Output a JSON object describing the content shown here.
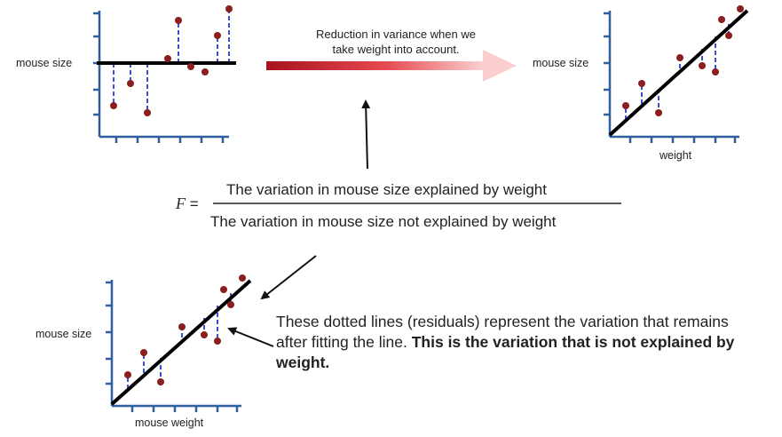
{
  "top_left_panel": {
    "ylabel": "mouse size"
  },
  "top_right_panel": {
    "ylabel": "mouse size",
    "xlabel": "weight"
  },
  "bottom_panel": {
    "ylabel": "mouse size",
    "xlabel": "mouse weight"
  },
  "arrow_caption_line1": "Reduction in variance when we",
  "arrow_caption_line2": "take weight into account.",
  "formula": {
    "lhs": "F",
    "equals": "=",
    "numerator": "The variation in mouse size explained by weight",
    "denominator": "The variation in mouse size not explained by weight"
  },
  "note": {
    "part1": "These dotted lines (residuals) represent the variation that remains after fitting the line. ",
    "part2_bold": "This is the variation that is not explained by weight."
  },
  "colors": {
    "axis": "#2f5f9e",
    "point": "#8b1f1f",
    "residual": "#3a4fd6",
    "fit_line": "#000000",
    "arrow_dark": "#a8121c",
    "arrow_light": "#f7c6c6"
  }
}
